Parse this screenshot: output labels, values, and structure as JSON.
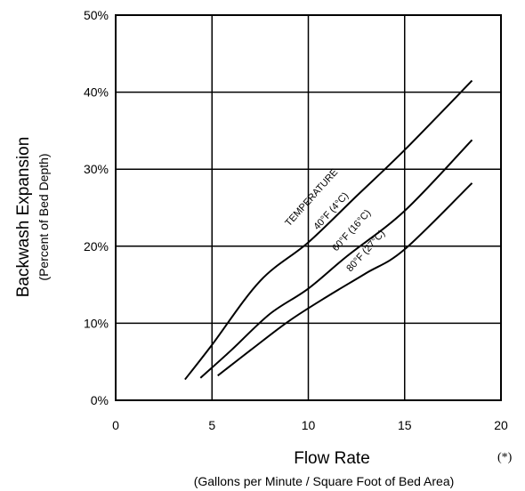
{
  "chart_data": {
    "type": "line",
    "title": "",
    "xlabel": "Flow Rate",
    "xlabel_sub": "(Gallons per Minute / Square Foot of Bed Area)",
    "ylabel": "Backwash Expansion",
    "ylabel_sub": "(Percent of Bed Depth)",
    "xlim": [
      0,
      20
    ],
    "ylim": [
      0,
      50
    ],
    "x_ticks": [
      0,
      5,
      10,
      15,
      20
    ],
    "x_tick_labels": [
      "0",
      "5",
      "10",
      "15",
      "20"
    ],
    "y_ticks": [
      0,
      10,
      20,
      30,
      40,
      50
    ],
    "y_tick_labels": [
      "0%",
      "10%",
      "20%",
      "30%",
      "40%",
      "50%"
    ],
    "grid": true,
    "legend_title": "TEMPERATURE",
    "series": [
      {
        "name": "40°F (4°C)",
        "x": [
          3.6,
          5,
          7.5,
          10,
          12.5,
          15,
          18.5
        ],
        "y": [
          2.7,
          7.2,
          15.5,
          20.5,
          26.5,
          32.5,
          41.5
        ]
      },
      {
        "name": "60°F (16°C)",
        "x": [
          4.4,
          6,
          8,
          10,
          12,
          15,
          18.5
        ],
        "y": [
          2.9,
          6.5,
          11.2,
          14.5,
          18.7,
          24.6,
          33.8
        ]
      },
      {
        "name": "80°F (27°C)",
        "x": [
          5.3,
          7,
          9,
          11,
          13,
          15,
          18.5
        ],
        "y": [
          3.2,
          6.5,
          10.3,
          13.5,
          16.5,
          19.6,
          28.2
        ]
      }
    ],
    "note": "(*)"
  }
}
